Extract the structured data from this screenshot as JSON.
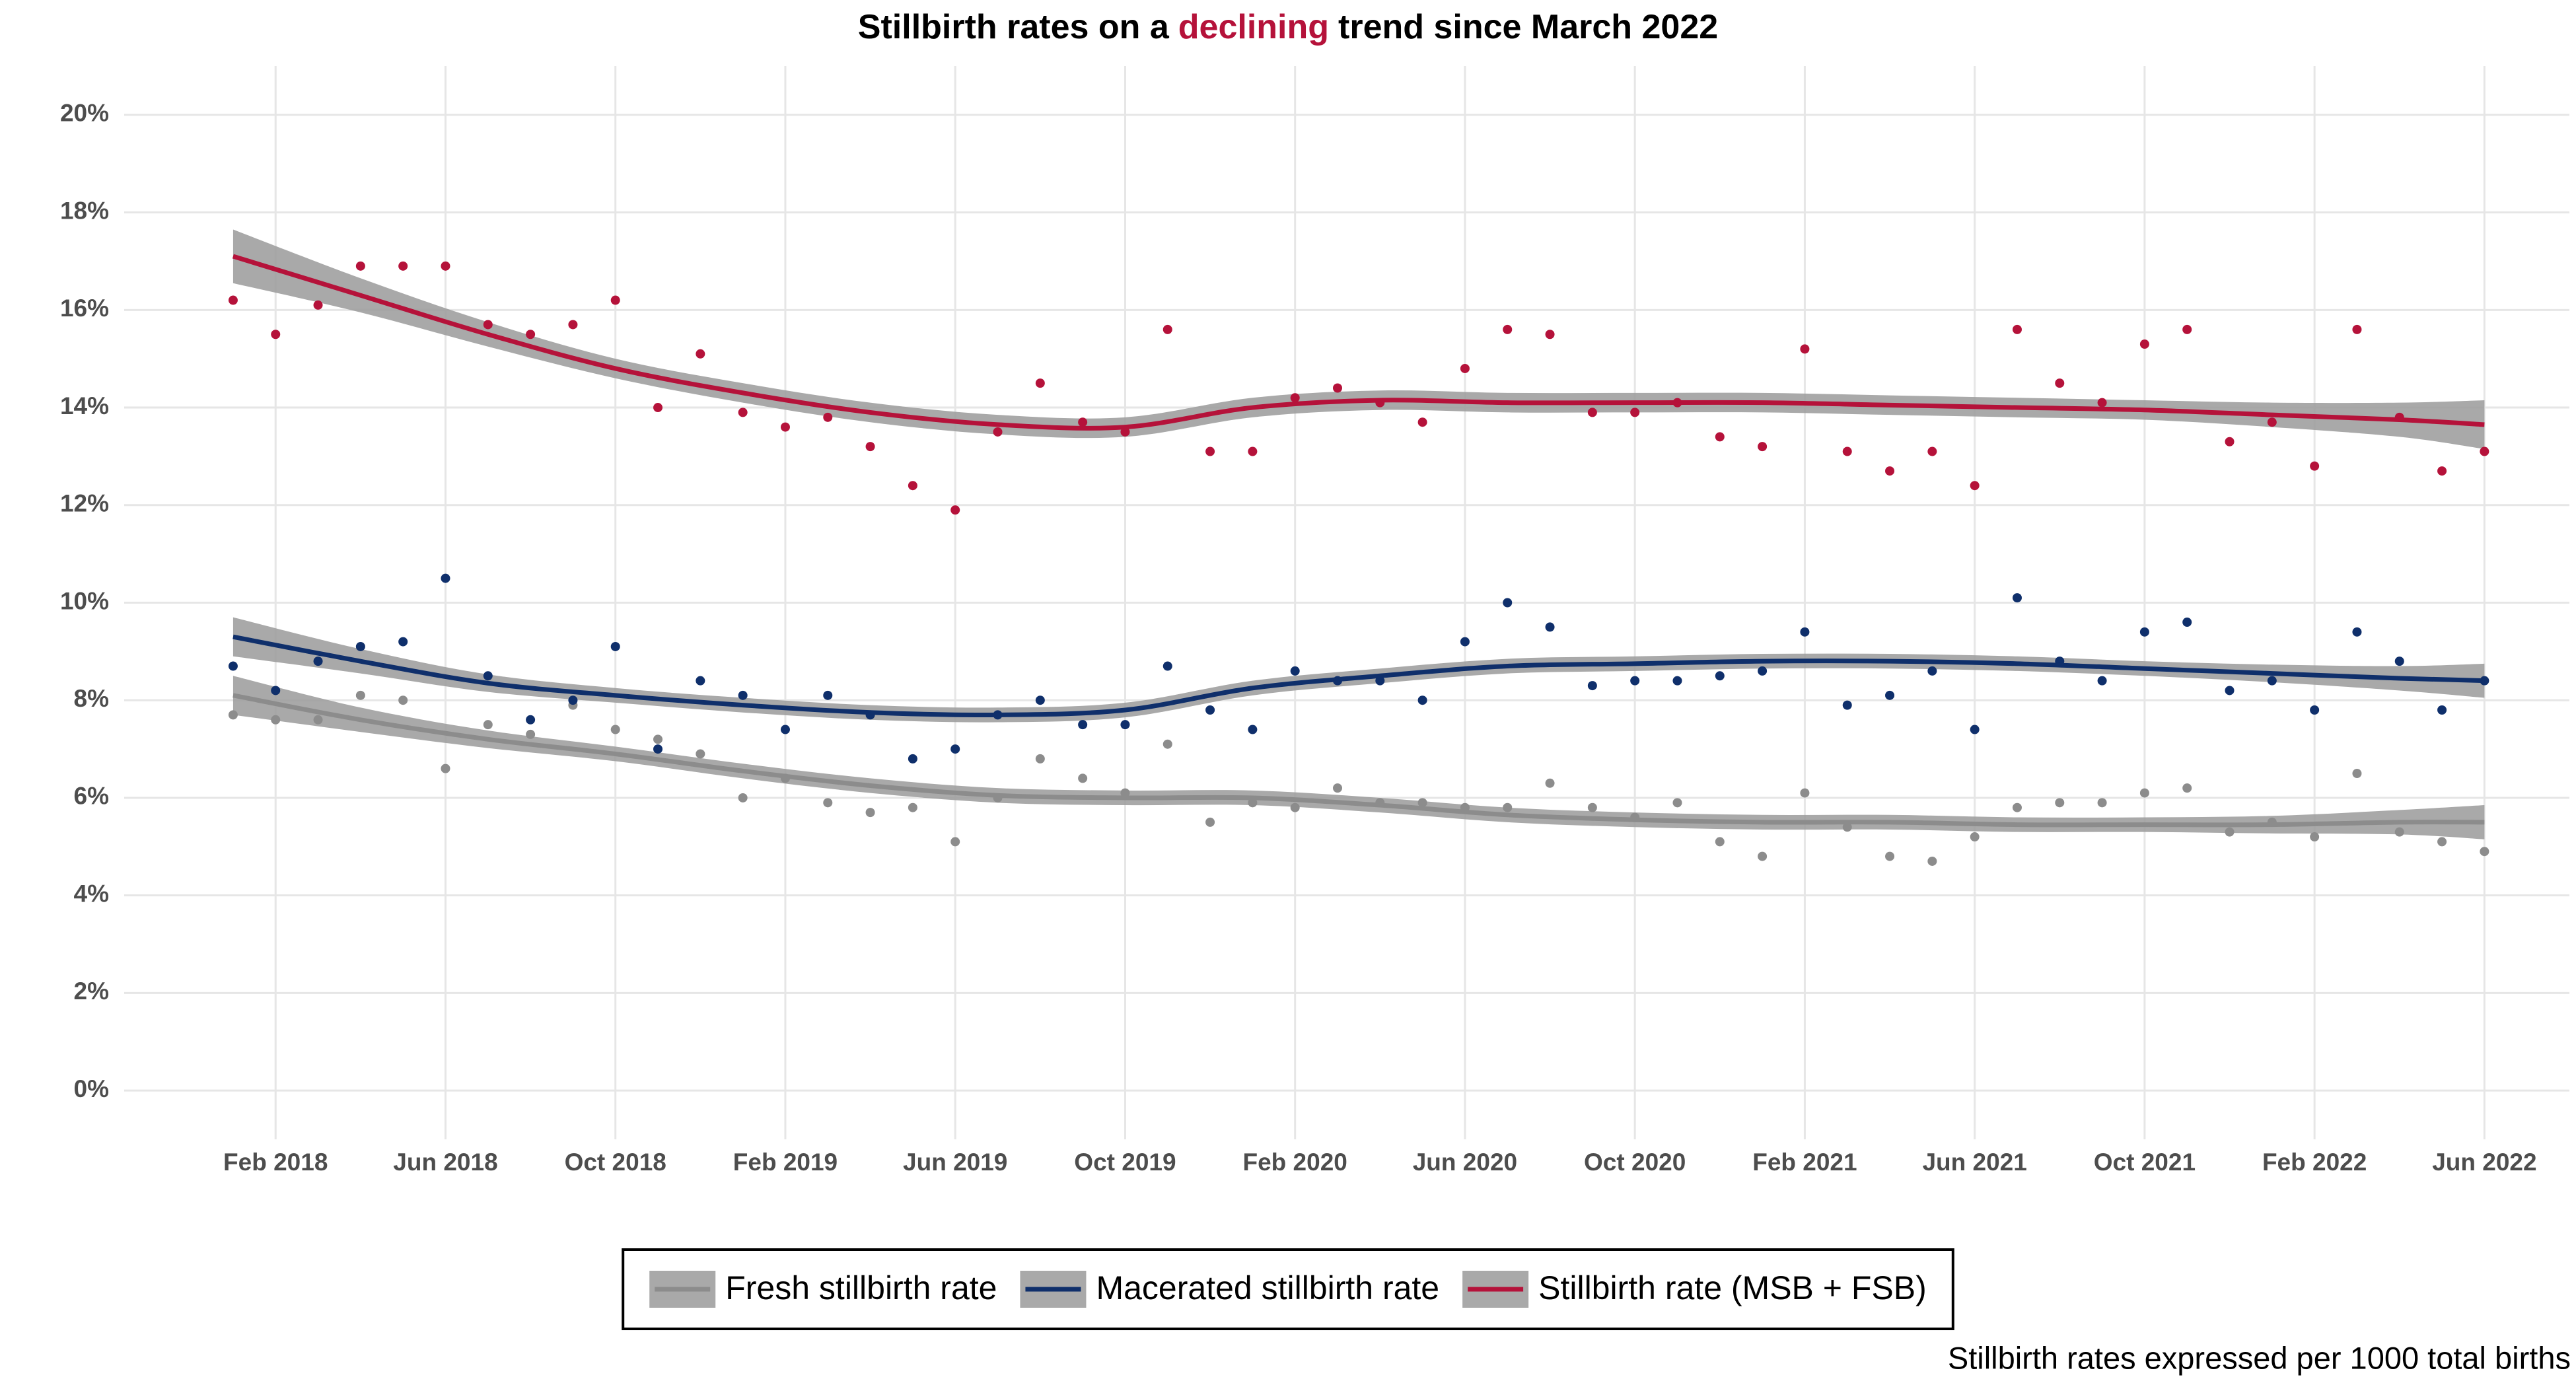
{
  "chart_data": {
    "type": "scatter",
    "title": {
      "text_before": "Stillbirth rates on a",
      "highlight": "declining",
      "text_after": "trend since March 2022",
      "highlight_color": "#b5123a"
    },
    "caption": "Stillbirth rates expressed per 1000 total births",
    "x": [
      "2018-01",
      "2018-02",
      "2018-03",
      "2018-04",
      "2018-05",
      "2018-06",
      "2018-07",
      "2018-08",
      "2018-09",
      "2018-10",
      "2018-11",
      "2018-12",
      "2019-01",
      "2019-02",
      "2019-03",
      "2019-04",
      "2019-05",
      "2019-06",
      "2019-07",
      "2019-08",
      "2019-09",
      "2019-10",
      "2019-11",
      "2019-12",
      "2020-01",
      "2020-02",
      "2020-03",
      "2020-04",
      "2020-05",
      "2020-06",
      "2020-07",
      "2020-08",
      "2020-09",
      "2020-10",
      "2020-11",
      "2020-12",
      "2021-01",
      "2021-02",
      "2021-03",
      "2021-04",
      "2021-05",
      "2021-06",
      "2021-07",
      "2021-08",
      "2021-09",
      "2021-10",
      "2021-11",
      "2021-12",
      "2022-01",
      "2022-02",
      "2022-03",
      "2022-04",
      "2022-05",
      "2022-06"
    ],
    "series": [
      {
        "name": "Fresh stillbirth rate",
        "color": "#8c8c8c",
        "values": [
          7.7,
          7.6,
          7.6,
          8.1,
          8.0,
          6.6,
          7.5,
          7.3,
          7.9,
          7.4,
          7.2,
          6.9,
          6.0,
          6.4,
          5.9,
          5.7,
          5.8,
          5.1,
          6.0,
          6.8,
          6.4,
          6.1,
          7.1,
          5.5,
          5.9,
          5.8,
          6.2,
          5.9,
          5.9,
          5.8,
          5.8,
          6.3,
          5.8,
          5.6,
          5.9,
          5.1,
          4.8,
          6.1,
          5.4,
          4.8,
          4.7,
          5.2,
          5.8,
          5.9,
          5.9,
          6.1,
          6.2,
          5.3,
          5.5,
          5.2,
          6.5,
          5.3,
          5.1,
          4.9
        ]
      },
      {
        "name": "Macerated stillbirth rate",
        "color": "#0f2f6b",
        "values": [
          8.7,
          8.2,
          8.8,
          9.1,
          9.2,
          10.5,
          8.5,
          7.6,
          8.0,
          9.1,
          7.0,
          8.4,
          8.1,
          7.4,
          8.1,
          7.7,
          6.8,
          7.0,
          7.7,
          8.0,
          7.5,
          7.5,
          8.7,
          7.8,
          7.4,
          8.6,
          8.4,
          8.4,
          8.0,
          9.2,
          10.0,
          9.5,
          8.3,
          8.4,
          8.4,
          8.5,
          8.6,
          9.4,
          7.9,
          8.1,
          8.6,
          7.4,
          10.1,
          8.8,
          8.4,
          9.4,
          9.6,
          8.2,
          8.4,
          7.8,
          9.4,
          8.8,
          7.8,
          8.4
        ]
      },
      {
        "name": "Stillbirth rate (MSB + FSB)",
        "color": "#b5123a",
        "values": [
          16.2,
          15.5,
          16.1,
          16.9,
          16.9,
          16.9,
          15.7,
          15.5,
          15.7,
          16.2,
          14.0,
          15.1,
          13.9,
          13.6,
          13.8,
          13.2,
          12.4,
          11.9,
          13.5,
          14.5,
          13.7,
          13.5,
          15.6,
          13.1,
          13.1,
          14.2,
          14.4,
          14.1,
          13.7,
          14.8,
          15.6,
          15.5,
          13.9,
          13.9,
          14.1,
          13.4,
          13.2,
          15.2,
          13.1,
          12.7,
          13.1,
          12.4,
          15.6,
          14.5,
          14.1,
          15.3,
          15.6,
          13.3,
          13.7,
          12.8,
          15.6,
          13.8,
          12.7,
          13.1
        ]
      }
    ],
    "smooth": {
      "x": [
        "2018-01",
        "2018-04",
        "2018-07",
        "2018-10",
        "2019-01",
        "2019-04",
        "2019-07",
        "2019-10",
        "2020-01",
        "2020-04",
        "2020-07",
        "2020-10",
        "2021-01",
        "2021-04",
        "2021-07",
        "2021-10",
        "2022-01",
        "2022-04",
        "2022-06"
      ],
      "band_color": "#9a9a9a",
      "series": [
        {
          "values": [
            8.1,
            7.6,
            7.2,
            6.9,
            6.55,
            6.25,
            6.05,
            6.0,
            6.0,
            5.85,
            5.65,
            5.55,
            5.5,
            5.5,
            5.45,
            5.45,
            5.45,
            5.5,
            5.5
          ],
          "lower": [
            7.7,
            7.35,
            7.02,
            6.75,
            6.4,
            6.1,
            5.9,
            5.85,
            5.85,
            5.7,
            5.5,
            5.4,
            5.35,
            5.35,
            5.3,
            5.3,
            5.27,
            5.25,
            5.15
          ],
          "upper": [
            8.5,
            7.85,
            7.38,
            7.05,
            6.7,
            6.4,
            6.2,
            6.15,
            6.15,
            6.0,
            5.8,
            5.7,
            5.65,
            5.65,
            5.6,
            5.6,
            5.63,
            5.75,
            5.85
          ]
        },
        {
          "values": [
            9.3,
            8.8,
            8.35,
            8.1,
            7.9,
            7.75,
            7.7,
            7.8,
            8.25,
            8.5,
            8.7,
            8.75,
            8.8,
            8.8,
            8.75,
            8.65,
            8.55,
            8.45,
            8.4
          ],
          "lower": [
            8.9,
            8.55,
            8.17,
            7.95,
            7.75,
            7.6,
            7.55,
            7.65,
            8.1,
            8.35,
            8.55,
            8.6,
            8.65,
            8.65,
            8.6,
            8.5,
            8.37,
            8.2,
            8.05
          ],
          "upper": [
            9.7,
            9.05,
            8.53,
            8.25,
            8.05,
            7.9,
            7.85,
            7.95,
            8.4,
            8.65,
            8.85,
            8.9,
            8.95,
            8.95,
            8.9,
            8.8,
            8.73,
            8.7,
            8.75
          ]
        },
        {
          "values": [
            17.1,
            16.3,
            15.5,
            14.8,
            14.3,
            13.9,
            13.65,
            13.6,
            14.0,
            14.15,
            14.1,
            14.1,
            14.1,
            14.05,
            14.0,
            13.95,
            13.85,
            13.75,
            13.65
          ],
          "lower": [
            16.55,
            15.95,
            15.25,
            14.6,
            14.1,
            13.7,
            13.45,
            13.4,
            13.8,
            13.95,
            13.9,
            13.9,
            13.9,
            13.85,
            13.8,
            13.75,
            13.6,
            13.4,
            13.15
          ],
          "upper": [
            17.65,
            16.65,
            15.75,
            15.0,
            14.5,
            14.1,
            13.85,
            13.8,
            14.2,
            14.35,
            14.3,
            14.3,
            14.3,
            14.25,
            14.2,
            14.15,
            14.1,
            14.1,
            14.15
          ]
        }
      ]
    },
    "xlim": [
      "2017-10",
      "2022-08"
    ],
    "xticks": [
      {
        "value": "2018-02",
        "label": "Feb 2018"
      },
      {
        "value": "2018-06",
        "label": "Jun 2018"
      },
      {
        "value": "2018-10",
        "label": "Oct 2018"
      },
      {
        "value": "2019-02",
        "label": "Feb 2019"
      },
      {
        "value": "2019-06",
        "label": "Jun 2019"
      },
      {
        "value": "2019-10",
        "label": "Oct 2019"
      },
      {
        "value": "2020-02",
        "label": "Feb 2020"
      },
      {
        "value": "2020-06",
        "label": "Jun 2020"
      },
      {
        "value": "2020-10",
        "label": "Oct 2020"
      },
      {
        "value": "2021-02",
        "label": "Feb 2021"
      },
      {
        "value": "2021-06",
        "label": "Jun 2021"
      },
      {
        "value": "2021-10",
        "label": "Oct 2021"
      },
      {
        "value": "2022-02",
        "label": "Feb 2022"
      },
      {
        "value": "2022-06",
        "label": "Jun 2022"
      }
    ],
    "ylim": [
      -1,
      21
    ],
    "yticks": [
      {
        "value": 0,
        "label": "0%"
      },
      {
        "value": 2,
        "label": "2%"
      },
      {
        "value": 4,
        "label": "4%"
      },
      {
        "value": 6,
        "label": "6%"
      },
      {
        "value": 8,
        "label": "8%"
      },
      {
        "value": 10,
        "label": "10%"
      },
      {
        "value": 12,
        "label": "12%"
      },
      {
        "value": 14,
        "label": "14%"
      },
      {
        "value": 16,
        "label": "16%"
      },
      {
        "value": 18,
        "label": "18%"
      },
      {
        "value": 20,
        "label": "20%"
      }
    ],
    "grid": true,
    "legend": "bottom"
  }
}
